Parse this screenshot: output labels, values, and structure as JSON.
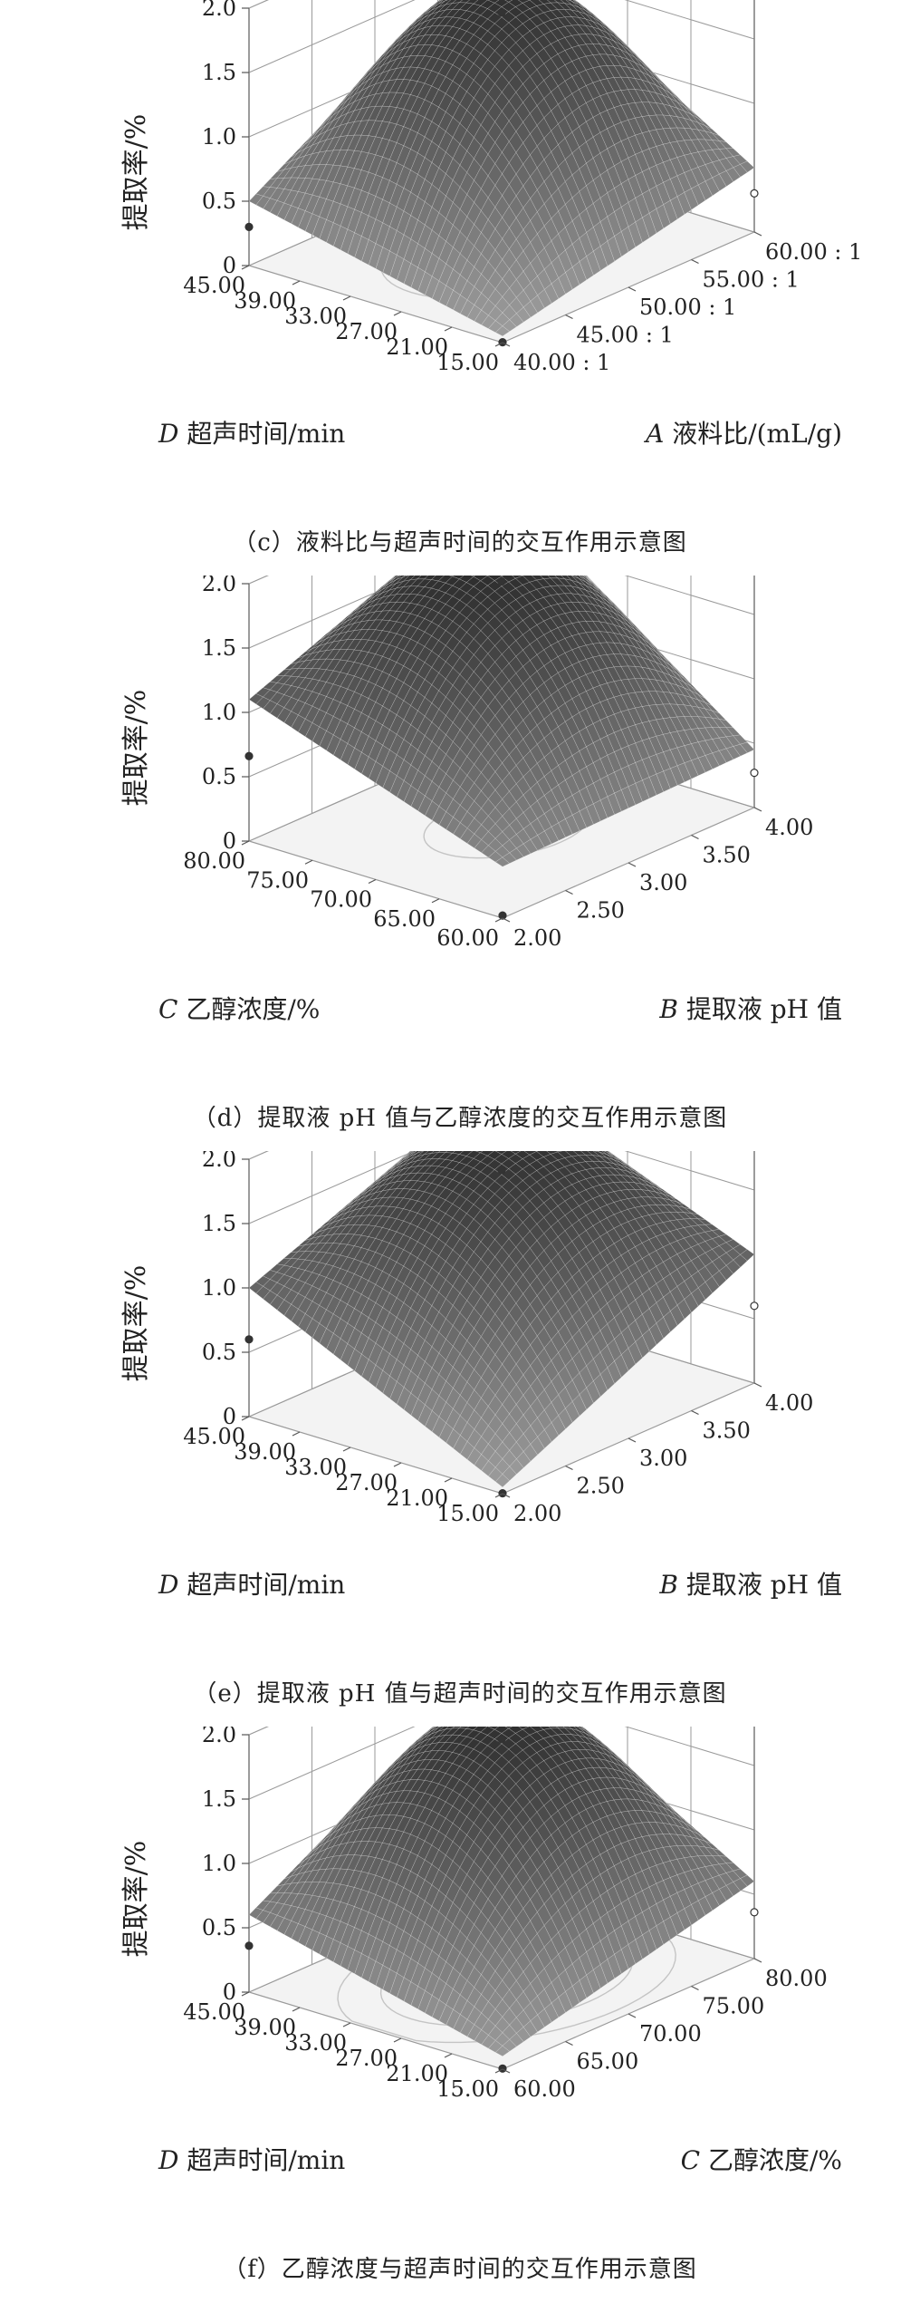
{
  "chart_data": [
    {
      "type": "surface",
      "caption": "（c）液料比与超声时间的交互作用示意图",
      "zlabel": "提取率/%",
      "z_ticks": [
        "2.0",
        "1.5",
        "1.0",
        "0.5",
        "0"
      ],
      "zlim": [
        0,
        2.0
      ],
      "x_axis": {
        "label_var": "A",
        "label_text": "液料比/(mL/g)",
        "ticks": [
          "40.00 : 1",
          "45.00 : 1",
          "50.00 : 1",
          "55.00 : 1",
          "60.00 : 1"
        ],
        "range": [
          40,
          60
        ]
      },
      "y_axis": {
        "label_var": "D",
        "label_text": "超声时间/min",
        "ticks": [
          "15.00",
          "21.00",
          "27.00",
          "33.00",
          "39.00",
          "45.00"
        ],
        "range": [
          15,
          45
        ]
      },
      "surface_peak": 1.8,
      "corners": {
        "far": 1.7,
        "left": 0.5,
        "right": 0.5,
        "front": 0.05
      },
      "contour_count": 3
    },
    {
      "type": "surface",
      "caption": "（d）提取液 pH 值与乙醇浓度的交互作用示意图",
      "zlabel": "提取率/%",
      "z_ticks": [
        "2.0",
        "1.5",
        "1.0",
        "0.5",
        "0"
      ],
      "zlim": [
        0,
        2.0
      ],
      "x_axis": {
        "label_var": "B",
        "label_text": "提取液 pH 值",
        "ticks": [
          "2.00",
          "2.50",
          "3.00",
          "3.50",
          "4.00"
        ],
        "range": [
          2,
          4
        ]
      },
      "y_axis": {
        "label_var": "C",
        "label_text": "乙醇浓度/%",
        "ticks": [
          "60.00",
          "65.00",
          "70.00",
          "75.00",
          "80.00"
        ],
        "range": [
          60,
          80
        ]
      },
      "surface_peak": 1.85,
      "corners": {
        "far": 1.9,
        "left": 1.1,
        "right": 0.45,
        "front": 0.4
      },
      "contour_count": 2
    },
    {
      "type": "surface",
      "caption": "（e）提取液 pH 值与超声时间的交互作用示意图",
      "zlabel": "提取率/%",
      "z_ticks": [
        "2.0",
        "1.5",
        "1.0",
        "0.5",
        "0"
      ],
      "zlim": [
        0,
        2.0
      ],
      "x_axis": {
        "label_var": "B",
        "label_text": "提取液 pH 值",
        "ticks": [
          "2.00",
          "2.50",
          "3.00",
          "3.50",
          "4.00"
        ],
        "range": [
          2,
          4
        ]
      },
      "y_axis": {
        "label_var": "D",
        "label_text": "超声时间/min",
        "ticks": [
          "15.00",
          "21.00",
          "27.00",
          "33.00",
          "39.00",
          "45.00"
        ],
        "range": [
          15,
          45
        ]
      },
      "surface_peak": 1.75,
      "corners": {
        "far": 1.8,
        "left": 1.0,
        "right": 1.0,
        "front": 0.05
      },
      "contour_count": 2
    },
    {
      "type": "surface",
      "caption": "（f）乙醇浓度与超声时间的交互作用示意图",
      "zlabel": "提取率/%",
      "z_ticks": [
        "2.0",
        "1.5",
        "1.0",
        "0.5",
        "0"
      ],
      "zlim": [
        0,
        2.0
      ],
      "x_axis": {
        "label_var": "C",
        "label_text": "乙醇浓度/%",
        "ticks": [
          "60.00",
          "65.00",
          "70.00",
          "75.00",
          "80.00"
        ],
        "range": [
          60,
          80
        ]
      },
      "y_axis": {
        "label_var": "D",
        "label_text": "超声时间/min",
        "ticks": [
          "15.00",
          "21.00",
          "27.00",
          "33.00",
          "39.00",
          "45.00"
        ],
        "range": [
          15,
          45
        ]
      },
      "surface_peak": 1.8,
      "corners": {
        "far": 1.75,
        "left": 0.6,
        "right": 0.6,
        "front": 0.1
      },
      "contour_count": 4
    }
  ]
}
